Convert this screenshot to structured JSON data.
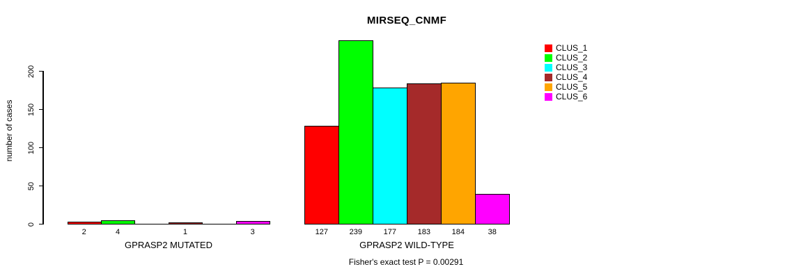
{
  "chart_data": {
    "type": "bar",
    "title": "MIRSEQ_CNMF",
    "ylabel": "number of cases",
    "xlabel": "",
    "ylim": [
      0,
      240
    ],
    "yticks": [
      0,
      50,
      100,
      150,
      200
    ],
    "grid": false,
    "legend_position": "right",
    "categories": [
      "GPRASP2 MUTATED",
      "GPRASP2 WILD-TYPE"
    ],
    "series": [
      {
        "name": "CLUS_1",
        "color": "#FF0000",
        "values": [
          2,
          127
        ]
      },
      {
        "name": "CLUS_2",
        "color": "#00FF00",
        "values": [
          4,
          239
        ]
      },
      {
        "name": "CLUS_3",
        "color": "#00FFFF",
        "values": [
          0,
          177
        ]
      },
      {
        "name": "CLUS_4",
        "color": "#A52A2A",
        "values": [
          1,
          183
        ]
      },
      {
        "name": "CLUS_5",
        "color": "#FFA500",
        "values": [
          0,
          184
        ]
      },
      {
        "name": "CLUS_6",
        "color": "#FF00FF",
        "values": [
          3,
          38
        ]
      }
    ],
    "bar_value_labels_mutated": [
      "2",
      "4",
      "1",
      "3"
    ],
    "bar_value_labels_wildtype": [
      "127",
      "239",
      "177",
      "183",
      "184",
      "38"
    ],
    "annotation": "Fisher's exact test P = 0.00291"
  }
}
